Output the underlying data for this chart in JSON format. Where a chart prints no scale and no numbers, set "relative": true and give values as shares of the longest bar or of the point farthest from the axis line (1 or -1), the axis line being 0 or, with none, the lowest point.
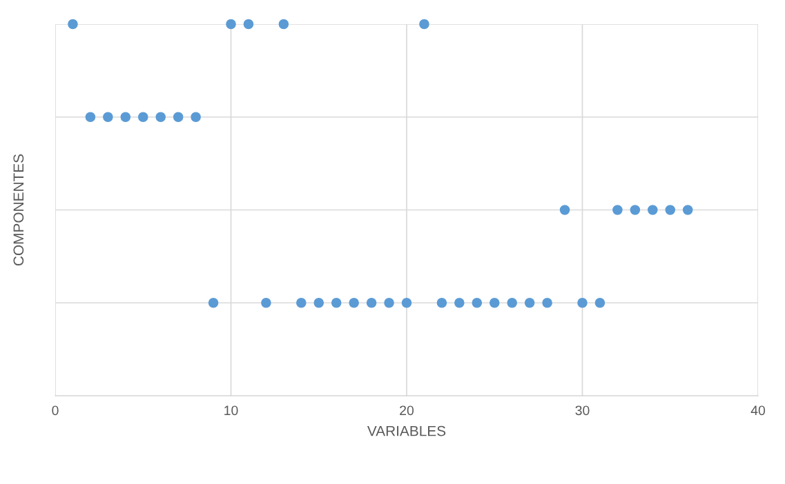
{
  "chart_data": {
    "type": "scatter",
    "xlabel": "VARIABLES",
    "ylabel": "COMPONENTES",
    "relative": true,
    "x": [
      1,
      10,
      11,
      13,
      21,
      2,
      3,
      4,
      5,
      6,
      7,
      8,
      29,
      32,
      33,
      34,
      35,
      36,
      9,
      12,
      14,
      15,
      16,
      17,
      18,
      19,
      20,
      22,
      23,
      24,
      25,
      26,
      27,
      28,
      30,
      31
    ],
    "values": [
      1,
      1,
      1,
      1,
      1,
      0.75,
      0.75,
      0.75,
      0.75,
      0.75,
      0.75,
      0.75,
      0.5,
      0.5,
      0.5,
      0.5,
      0.5,
      0.5,
      0.25,
      0.25,
      0.25,
      0.25,
      0.25,
      0.25,
      0.25,
      0.25,
      0.25,
      0.25,
      0.25,
      0.25,
      0.25,
      0.25,
      0.25,
      0.25,
      0.25,
      0.25
    ],
    "color": "#5b9bd5",
    "marker": "circle",
    "xlim": [
      0,
      40
    ],
    "xticks": [
      0,
      10,
      20,
      30,
      40
    ],
    "grid": true
  }
}
